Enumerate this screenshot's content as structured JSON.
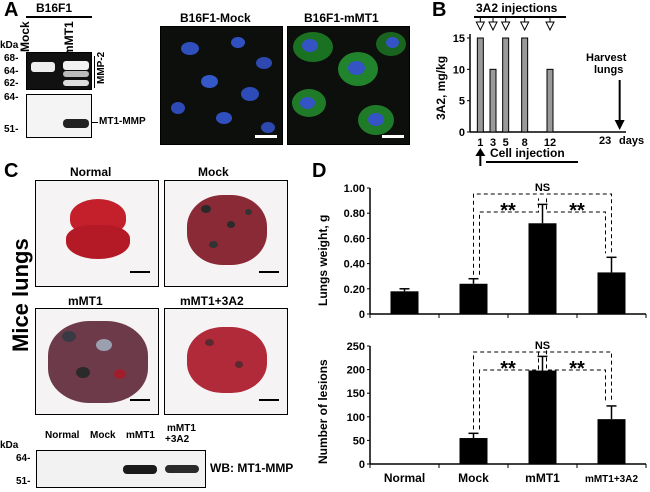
{
  "panelA": {
    "letter": "A",
    "cell_line": "B16F1",
    "lane_labels": [
      "Mock",
      "mMT1"
    ],
    "kda_label": "kDa",
    "zymo_markers": [
      "68-",
      "64-",
      "62-"
    ],
    "zymo_band_label": "MMP-2",
    "wb_markers": [
      "64-",
      "51-"
    ],
    "wb_band_label": "MT1-MMP",
    "image_titles": [
      "B16F1-Mock",
      "B16F1-mMT1"
    ]
  },
  "panelB": {
    "letter": "B",
    "title": "3A2 injections",
    "ylabel": "3A2, mg/kg",
    "xlabel": "days",
    "injection_label": "Cell injection",
    "harvest_label_1": "Harvest",
    "harvest_label_2": "lungs",
    "harvest_day_label": "23",
    "chart_data": {
      "type": "bar",
      "x": [
        1,
        3,
        5,
        8,
        12
      ],
      "values": [
        15,
        10,
        15,
        15,
        10
      ],
      "ylim": [
        0,
        15
      ],
      "yticks": [
        0,
        5,
        10,
        15
      ],
      "xticks": [
        "1",
        "3",
        "5",
        "8",
        "12"
      ],
      "ylabel": "3A2, mg/kg",
      "xlabel": "days"
    }
  },
  "panelC": {
    "letter": "C",
    "side_label": "Mice lungs",
    "photo_titles": [
      "Normal",
      "Mock",
      "mMT1",
      "mMT1+3A2"
    ],
    "kda_label": "kDa",
    "wb_lanes": [
      "Normal",
      "Mock",
      "mMT1",
      "mMT1",
      "+3A2"
    ],
    "wb_markers": [
      "64-",
      "51-"
    ],
    "wb_label": "WB: MT1-MMP"
  },
  "panelD": {
    "letter": "D",
    "categories": [
      "Normal",
      "Mock",
      "mMT1",
      "mMT1+3A2"
    ],
    "sig_ns": "NS",
    "sig_star": "**",
    "chart_data": [
      {
        "type": "bar",
        "categories": [
          "Normal",
          "Mock",
          "mMT1",
          "mMT1+3A2"
        ],
        "values": [
          0.18,
          0.24,
          0.72,
          0.33
        ],
        "errors": [
          0.02,
          0.04,
          0.15,
          0.12
        ],
        "ylim": [
          0,
          1.0
        ],
        "yticks": [
          "0",
          "0.20",
          "0.40",
          "0.60",
          "0.80",
          "1.00"
        ],
        "ylabel": "Lungs weight, g"
      },
      {
        "type": "bar",
        "categories": [
          "Normal",
          "Mock",
          "mMT1",
          "mMT1+3A2"
        ],
        "values": [
          0,
          55,
          198,
          95
        ],
        "errors": [
          0,
          10,
          30,
          28
        ],
        "ylim": [
          0,
          250
        ],
        "yticks": [
          "0",
          "50",
          "100",
          "150",
          "200",
          "250"
        ],
        "ylabel": "Number of lesions"
      }
    ]
  }
}
